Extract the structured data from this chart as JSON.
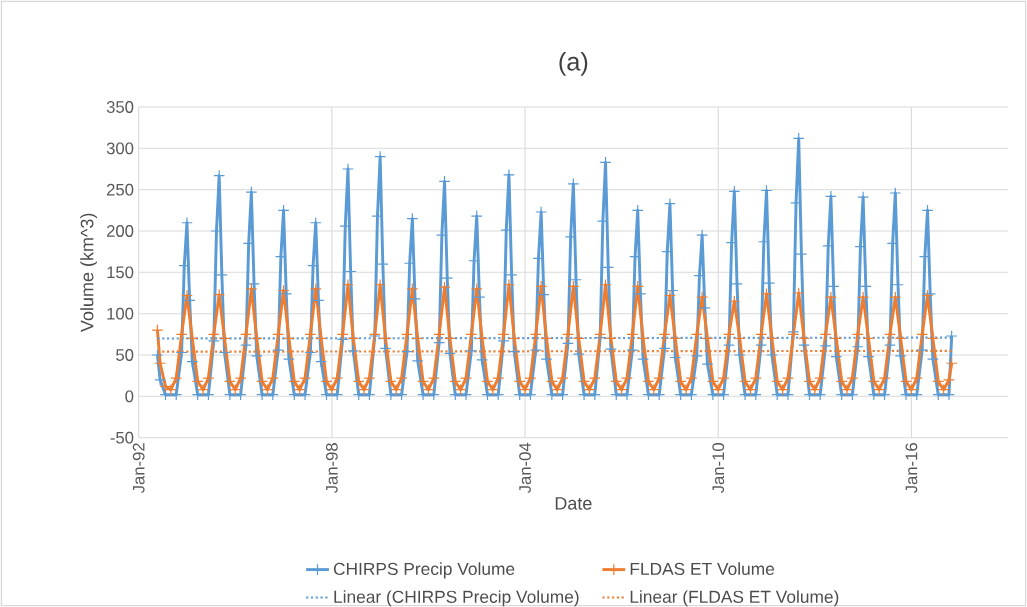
{
  "chart_data": {
    "type": "line",
    "title": "(a)",
    "xlabel": "Date",
    "ylabel": "Volume (km^3)",
    "xlim": [
      "1992-01",
      "2019-01"
    ],
    "xticks": [
      {
        "value": "1992-01",
        "label": "Jan-92"
      },
      {
        "value": "1998-01",
        "label": "Jan-98"
      },
      {
        "value": "2004-01",
        "label": "Jan-04"
      },
      {
        "value": "2010-01",
        "label": "Jan-10"
      },
      {
        "value": "2016-01",
        "label": "Jan-16"
      }
    ],
    "ylim": [
      -50,
      350
    ],
    "yticks": [
      -50,
      0,
      50,
      100,
      150,
      200,
      250,
      300,
      350
    ],
    "grid": true,
    "legend": "bottom",
    "marker": "cross",
    "line_style": "solid",
    "series": [
      {
        "name": "CHIRPS Precip Volume",
        "color": "#5b9bd5",
        "x": [
          "1992-08",
          "1992-09",
          "1992-11",
          "1993-03",
          "1993-05",
          "1993-06",
          "1993-07",
          "1993-08",
          "1993-09",
          "1993-11",
          "1994-03",
          "1994-05",
          "1994-06",
          "1994-07",
          "1994-08",
          "1994-09",
          "1994-11",
          "1995-03",
          "1995-05",
          "1995-06",
          "1995-07",
          "1995-08",
          "1995-09",
          "1995-11",
          "1996-03",
          "1996-05",
          "1996-06",
          "1996-07",
          "1996-08",
          "1996-09",
          "1996-11",
          "1997-03",
          "1997-05",
          "1997-06",
          "1997-07",
          "1997-08",
          "1997-09",
          "1997-11",
          "1998-03",
          "1998-05",
          "1998-06",
          "1998-07",
          "1998-08",
          "1998-09",
          "1998-11",
          "1999-03",
          "1999-05",
          "1999-06",
          "1999-07",
          "1999-08",
          "1999-09",
          "1999-11",
          "2000-03",
          "2000-05",
          "2000-06",
          "2000-07",
          "2000-08",
          "2000-09",
          "2000-11",
          "2001-03",
          "2001-05",
          "2001-06",
          "2001-07",
          "2001-08",
          "2001-09",
          "2001-11",
          "2002-03",
          "2002-05",
          "2002-06",
          "2002-07",
          "2002-08",
          "2002-09",
          "2002-11",
          "2003-03",
          "2003-05",
          "2003-06",
          "2003-07",
          "2003-08",
          "2003-09",
          "2003-11",
          "2004-03",
          "2004-05",
          "2004-06",
          "2004-07",
          "2004-08",
          "2004-09",
          "2004-11",
          "2005-03",
          "2005-05",
          "2005-06",
          "2005-07",
          "2005-08",
          "2005-09",
          "2005-11",
          "2006-03",
          "2006-05",
          "2006-06",
          "2006-07",
          "2006-08",
          "2006-09",
          "2006-11",
          "2007-03",
          "2007-05",
          "2007-06",
          "2007-07",
          "2007-08",
          "2007-09",
          "2007-11",
          "2008-03",
          "2008-05",
          "2008-06",
          "2008-07",
          "2008-08",
          "2008-09",
          "2008-11",
          "2009-03",
          "2009-05",
          "2009-06",
          "2009-07",
          "2009-08",
          "2009-09",
          "2009-11",
          "2010-03",
          "2010-05",
          "2010-06",
          "2010-07",
          "2010-08",
          "2010-09",
          "2010-11",
          "2011-03",
          "2011-05",
          "2011-06",
          "2011-07",
          "2011-08",
          "2011-09",
          "2011-11",
          "2012-03",
          "2012-05",
          "2012-06",
          "2012-07",
          "2012-08",
          "2012-09",
          "2012-11",
          "2013-03",
          "2013-05",
          "2013-06",
          "2013-07",
          "2013-08",
          "2013-09",
          "2013-11",
          "2014-03",
          "2014-05",
          "2014-06",
          "2014-07",
          "2014-08",
          "2014-09",
          "2014-11",
          "2015-03",
          "2015-05",
          "2015-06",
          "2015-07",
          "2015-08",
          "2015-09",
          "2015-11",
          "2016-03",
          "2016-05",
          "2016-06",
          "2016-07",
          "2016-08",
          "2016-09",
          "2016-11",
          "2017-03",
          "2017-04"
        ],
        "values": [
          50,
          20,
          2,
          2,
          53,
          158,
          210,
          116,
          42,
          2,
          2,
          67,
          200,
          267,
          147,
          53,
          2,
          2,
          62,
          185,
          247,
          136,
          49,
          2,
          2,
          56,
          169,
          225,
          124,
          45,
          2,
          2,
          53,
          158,
          210,
          116,
          42,
          2,
          2,
          69,
          206,
          275,
          151,
          55,
          2,
          2,
          73,
          218,
          290,
          160,
          58,
          2,
          2,
          54,
          161,
          215,
          118,
          43,
          2,
          2,
          65,
          195,
          260,
          143,
          52,
          2,
          2,
          55,
          164,
          218,
          120,
          44,
          2,
          2,
          67,
          201,
          268,
          147,
          54,
          2,
          2,
          56,
          167,
          223,
          123,
          45,
          2,
          2,
          64,
          193,
          257,
          141,
          51,
          2,
          2,
          71,
          212,
          283,
          156,
          57,
          2,
          2,
          56,
          169,
          225,
          124,
          45,
          2,
          2,
          58,
          175,
          233,
          128,
          47,
          2,
          2,
          49,
          146,
          195,
          107,
          39,
          2,
          2,
          62,
          186,
          248,
          136,
          50,
          2,
          2,
          62,
          187,
          249,
          137,
          50,
          2,
          2,
          78,
          234,
          312,
          172,
          62,
          2,
          2,
          61,
          182,
          242,
          133,
          48,
          2,
          2,
          60,
          181,
          241,
          133,
          48,
          2,
          2,
          62,
          185,
          246,
          135,
          49,
          2,
          2,
          56,
          169,
          225,
          124,
          45,
          2,
          2,
          73
        ]
      },
      {
        "name": "FLDAS ET Volume",
        "color": "#ed7d31",
        "x": [
          "1992-08",
          "1992-09",
          "1992-11",
          "1993-01",
          "1993-03",
          "1993-05",
          "1993-07",
          "1993-09",
          "1993-11",
          "1994-01",
          "1994-03",
          "1994-05",
          "1994-07",
          "1994-09",
          "1994-11",
          "1995-01",
          "1995-03",
          "1995-05",
          "1995-07",
          "1995-09",
          "1995-11",
          "1996-01",
          "1996-03",
          "1996-05",
          "1996-07",
          "1996-09",
          "1996-11",
          "1997-01",
          "1997-03",
          "1997-05",
          "1997-07",
          "1997-09",
          "1997-11",
          "1998-01",
          "1998-03",
          "1998-05",
          "1998-07",
          "1998-09",
          "1998-11",
          "1999-01",
          "1999-03",
          "1999-05",
          "1999-07",
          "1999-09",
          "1999-11",
          "2000-01",
          "2000-03",
          "2000-05",
          "2000-07",
          "2000-09",
          "2000-11",
          "2001-01",
          "2001-03",
          "2001-05",
          "2001-07",
          "2001-09",
          "2001-11",
          "2002-01",
          "2002-03",
          "2002-05",
          "2002-07",
          "2002-09",
          "2002-11",
          "2003-01",
          "2003-03",
          "2003-05",
          "2003-07",
          "2003-09",
          "2003-11",
          "2004-01",
          "2004-03",
          "2004-05",
          "2004-07",
          "2004-09",
          "2004-11",
          "2005-01",
          "2005-03",
          "2005-05",
          "2005-07",
          "2005-09",
          "2005-11",
          "2006-01",
          "2006-03",
          "2006-05",
          "2006-07",
          "2006-09",
          "2006-11",
          "2007-01",
          "2007-03",
          "2007-05",
          "2007-07",
          "2007-09",
          "2007-11",
          "2008-01",
          "2008-03",
          "2008-05",
          "2008-07",
          "2008-09",
          "2008-11",
          "2009-01",
          "2009-03",
          "2009-05",
          "2009-07",
          "2009-09",
          "2009-11",
          "2010-01",
          "2010-03",
          "2010-05",
          "2010-07",
          "2010-09",
          "2010-11",
          "2011-01",
          "2011-03",
          "2011-05",
          "2011-07",
          "2011-09",
          "2011-11",
          "2012-01",
          "2012-03",
          "2012-05",
          "2012-07",
          "2012-09",
          "2012-11",
          "2013-01",
          "2013-03",
          "2013-05",
          "2013-07",
          "2013-09",
          "2013-11",
          "2014-01",
          "2014-03",
          "2014-05",
          "2014-07",
          "2014-09",
          "2014-11",
          "2015-01",
          "2015-03",
          "2015-05",
          "2015-07",
          "2015-09",
          "2015-11",
          "2016-01",
          "2016-03",
          "2016-05",
          "2016-07",
          "2016-09",
          "2016-11",
          "2017-01",
          "2017-03",
          "2017-04"
        ],
        "values": [
          80,
          40,
          12,
          8,
          22,
          75,
          122,
          70,
          18,
          8,
          22,
          75,
          123,
          70,
          18,
          8,
          22,
          75,
          130,
          70,
          18,
          8,
          22,
          75,
          128,
          70,
          18,
          8,
          22,
          75,
          130,
          70,
          18,
          8,
          22,
          75,
          135,
          70,
          18,
          8,
          22,
          75,
          135,
          70,
          18,
          8,
          22,
          75,
          130,
          70,
          18,
          8,
          22,
          75,
          132,
          70,
          18,
          8,
          22,
          75,
          130,
          70,
          18,
          8,
          22,
          75,
          135,
          70,
          18,
          8,
          22,
          75,
          133,
          70,
          18,
          8,
          22,
          75,
          133,
          70,
          18,
          8,
          22,
          75,
          135,
          70,
          18,
          8,
          22,
          75,
          133,
          70,
          18,
          8,
          22,
          75,
          122,
          70,
          18,
          8,
          22,
          75,
          120,
          70,
          18,
          8,
          22,
          75,
          115,
          70,
          18,
          8,
          22,
          75,
          124,
          70,
          18,
          8,
          22,
          75,
          125,
          70,
          18,
          8,
          22,
          75,
          120,
          70,
          18,
          8,
          22,
          75,
          120,
          70,
          18,
          8,
          22,
          75,
          120,
          70,
          18,
          8,
          22,
          75,
          122,
          70,
          18,
          8,
          20,
          40
        ]
      },
      {
        "name": "Linear (CHIRPS Precip Volume)",
        "color": "#5b9bd5",
        "marker": "none",
        "line_style": "dotted",
        "x": [
          "1992-08",
          "2017-04"
        ],
        "values": [
          70,
          71
        ]
      },
      {
        "name": "Linear (FLDAS ET Volume)",
        "color": "#ed7d31",
        "marker": "none",
        "line_style": "dotted",
        "x": [
          "1992-08",
          "2017-04"
        ],
        "values": [
          54,
          55
        ]
      }
    ]
  }
}
